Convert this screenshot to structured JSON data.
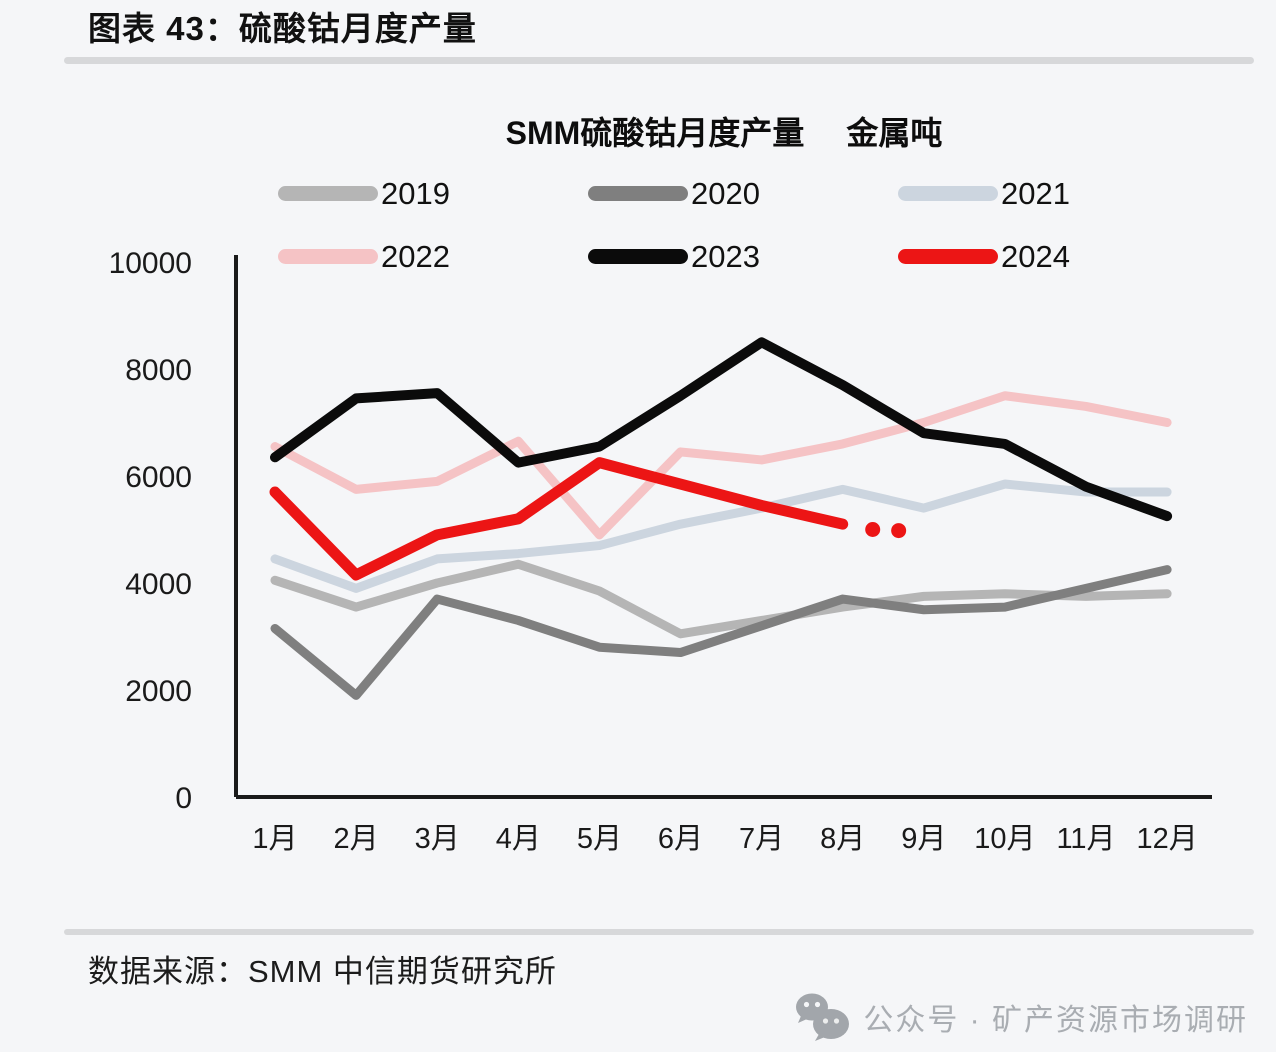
{
  "header": {
    "title": "图表 43：硫酸钴月度产量"
  },
  "footer": {
    "source": "数据来源：SMM 中信期货研究所",
    "watermark": "公众号 · 矿产资源市场调研",
    "watermark_icon": "wechat-icon"
  },
  "colors": {
    "axis": "#1a1a1a",
    "divider": "#d7d8da",
    "watermark_gray": "#a9adb2",
    "background": "#f5f6f8"
  },
  "chart_data": {
    "type": "line",
    "title": "SMM硫酸钴月度产量",
    "unit_label": "金属吨",
    "categories": [
      "1月",
      "2月",
      "3月",
      "4月",
      "5月",
      "6月",
      "7月",
      "8月",
      "9月",
      "10月",
      "11月",
      "12月"
    ],
    "ylim": [
      0,
      10000
    ],
    "yticks": [
      0,
      2000,
      4000,
      6000,
      8000,
      10000
    ],
    "grid": false,
    "legend_position": "top",
    "series": [
      {
        "name": "2019",
        "color": "#b5b5b5",
        "width": 9,
        "values": [
          4050,
          3550,
          4000,
          4350,
          3850,
          3050,
          3300,
          3550,
          3750,
          3800,
          3750,
          3800
        ]
      },
      {
        "name": "2020",
        "color": "#7f7f7f",
        "width": 9,
        "values": [
          3150,
          1900,
          3700,
          3300,
          2800,
          2700,
          3200,
          3700,
          3500,
          3550,
          3900,
          4250
        ]
      },
      {
        "name": "2021",
        "color": "#ccd5df",
        "width": 9,
        "values": [
          4450,
          3900,
          4450,
          4550,
          4700,
          5100,
          5400,
          5750,
          5400,
          5850,
          5700,
          5700
        ]
      },
      {
        "name": "2022",
        "color": "#f5c3c5",
        "width": 9,
        "values": [
          6550,
          5750,
          5900,
          6650,
          4900,
          6450,
          6300,
          6600,
          7000,
          7500,
          7300,
          7000
        ]
      },
      {
        "name": "2023",
        "color": "#0b0b0b",
        "width": 10,
        "values": [
          6350,
          7450,
          7550,
          6250,
          6550,
          7500,
          8500,
          7700,
          6800,
          6600,
          5800,
          5250
        ]
      },
      {
        "name": "2024",
        "color": "#ec1515",
        "width": 11,
        "values": [
          5700,
          4150,
          4900,
          5200,
          6250,
          5850,
          5450,
          5100
        ],
        "forecast_dots": [
          {
            "month": 8.37,
            "value": 5000
          },
          {
            "month": 8.69,
            "value": 4980
          }
        ]
      }
    ]
  }
}
